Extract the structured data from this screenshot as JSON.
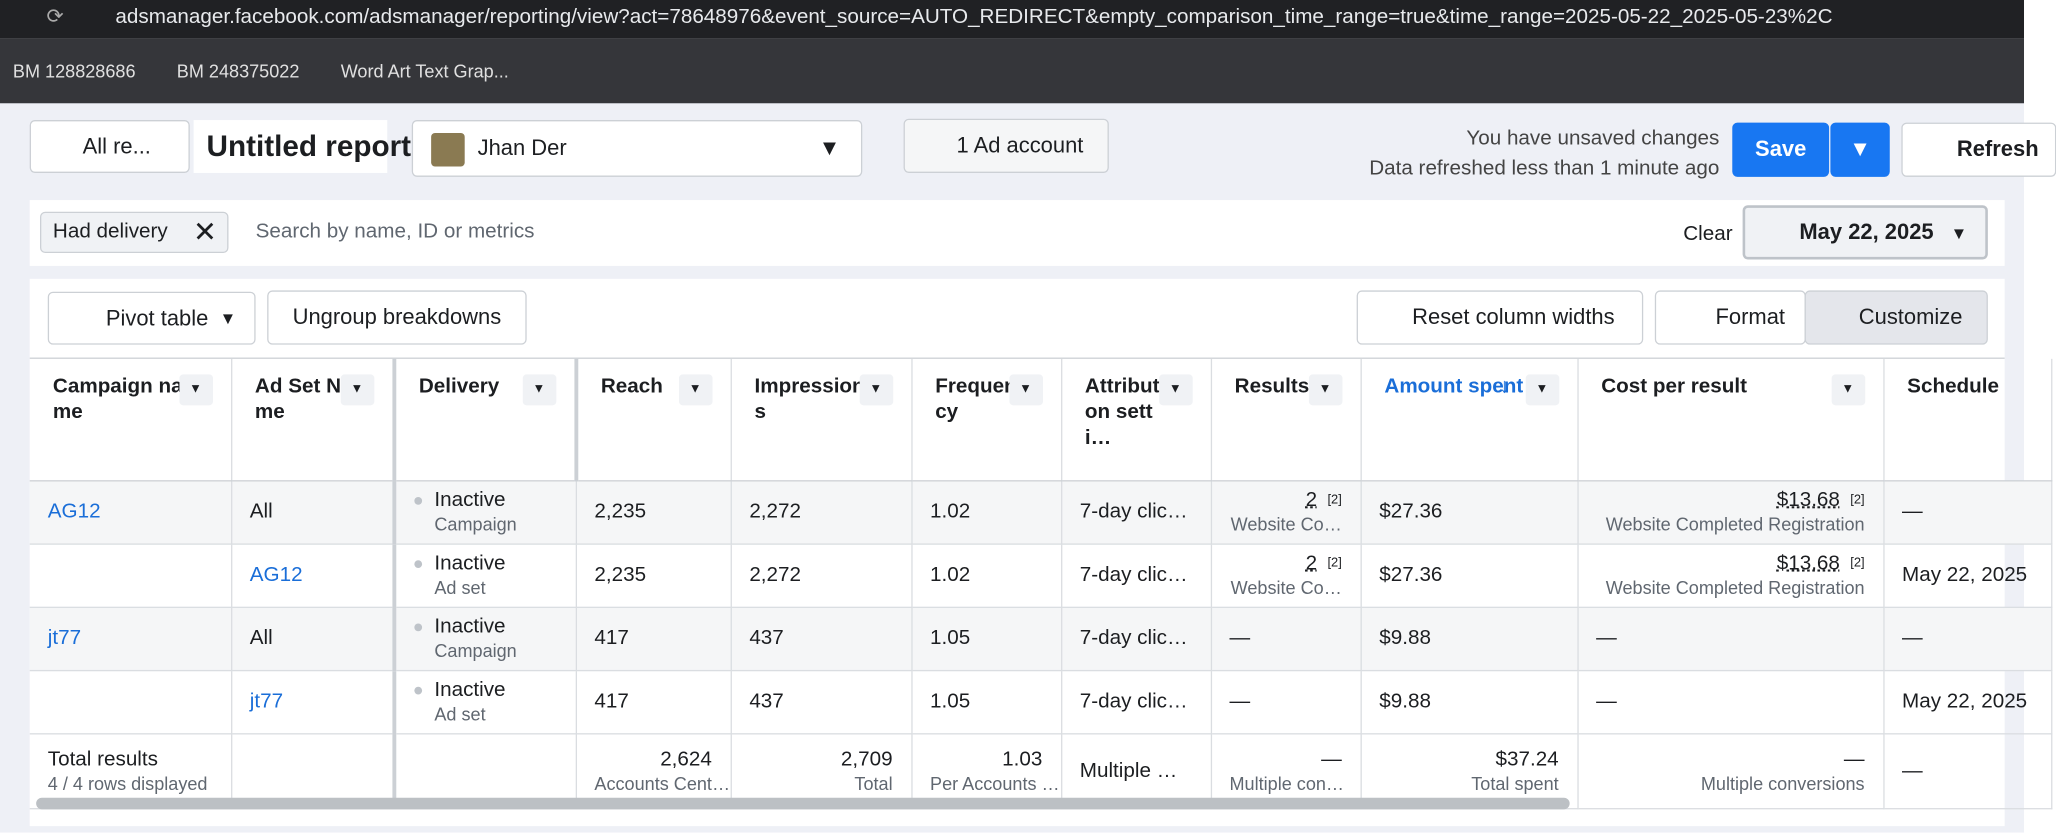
{
  "browser": {
    "url": "adsmanager.facebook.com/adsmanager/reporting/view?act=78648976&event_source=AUTO_REDIRECT&empty_comparison_time_range=true&time_range=2025-05-22_2025-05-23%2C",
    "bookmarks": [
      "BM 128828686",
      "BM 248375022",
      "Word Art Text Grap..."
    ]
  },
  "header": {
    "back": "All re...",
    "title": "Untitled report",
    "account": "Jhan Der",
    "ad_account": "1 Ad account",
    "unsaved": "You have unsaved changes",
    "refreshed": "Data refreshed less than 1 minute ago",
    "save": "Save",
    "refresh": "Refresh"
  },
  "filter": {
    "chip": "Had delivery",
    "search_placeholder": "Search by name, ID or metrics",
    "clear": "Clear",
    "date": "May 22, 2025"
  },
  "toolbar": {
    "pivot": "Pivot table",
    "ungroup": "Ungroup breakdowns",
    "reset": "Reset column widths",
    "format": "Format",
    "customize": "Customize"
  },
  "table": {
    "columns": [
      {
        "label": "Campaign name"
      },
      {
        "label": "Ad Set Name"
      },
      {
        "label": "Delivery"
      },
      {
        "label": "Reach"
      },
      {
        "label": "Impressions"
      },
      {
        "label": "Frequency"
      },
      {
        "label": "Attribution setti…"
      },
      {
        "label": "Results"
      },
      {
        "label": "Amount spent",
        "sorted": true
      },
      {
        "label": "Cost per result"
      },
      {
        "label": "Schedule"
      }
    ],
    "rows": [
      [
        {
          "text": "AG12",
          "link": true
        },
        {
          "text": "All"
        },
        {
          "text": "Inactive",
          "sub": "Campaign",
          "dot": true
        },
        {
          "text": "2,235"
        },
        {
          "text": "2,272"
        },
        {
          "text": "1.02"
        },
        {
          "text": "7-day clic…"
        },
        {
          "text": "2",
          "note": "[2]",
          "sub": "Website Co…"
        },
        {
          "text": "$27.36"
        },
        {
          "text": "$13.68",
          "note": "[2]",
          "sub": "Website Completed Registration"
        },
        {
          "text": "—"
        }
      ],
      [
        null,
        {
          "text": "AG12",
          "link": true
        },
        {
          "text": "Inactive",
          "sub": "Ad set",
          "dot": true
        },
        {
          "text": "2,235"
        },
        {
          "text": "2,272"
        },
        {
          "text": "1.02"
        },
        {
          "text": "7-day clic…"
        },
        {
          "text": "2",
          "note": "[2]",
          "sub": "Website Co…"
        },
        {
          "text": "$27.36"
        },
        {
          "text": "$13.68",
          "note": "[2]",
          "sub": "Website Completed Registration"
        },
        {
          "text": "May 22, 2025"
        }
      ],
      [
        {
          "text": "jt77",
          "link": true
        },
        {
          "text": "All"
        },
        {
          "text": "Inactive",
          "sub": "Campaign",
          "dot": true
        },
        {
          "text": "417"
        },
        {
          "text": "437"
        },
        {
          "text": "1.05"
        },
        {
          "text": "7-day clic…"
        },
        {
          "text": "—"
        },
        {
          "text": "$9.88"
        },
        {
          "text": "—"
        },
        {
          "text": "—"
        }
      ],
      [
        null,
        {
          "text": "jt77",
          "link": true
        },
        {
          "text": "Inactive",
          "sub": "Ad set",
          "dot": true
        },
        {
          "text": "417"
        },
        {
          "text": "437"
        },
        {
          "text": "1.05"
        },
        {
          "text": "7-day clic…"
        },
        {
          "text": "—"
        },
        {
          "text": "$9.88"
        },
        {
          "text": "—"
        },
        {
          "text": "May 22, 2025"
        }
      ]
    ],
    "totals": [
      {
        "text": "Total results",
        "sub": "4 / 4 rows displayed"
      },
      null,
      null,
      {
        "text": "2,624",
        "sub": "Accounts Cent…"
      },
      {
        "text": "2,709",
        "sub": "Total"
      },
      {
        "text": "1.03",
        "sub": "Per Accounts …"
      },
      {
        "text": "Multiple …"
      },
      {
        "text": "—",
        "sub": "Multiple con…"
      },
      {
        "text": "$37.24",
        "sub": "Total spent"
      },
      {
        "text": "—",
        "sub": "Multiple conversions"
      },
      {
        "text": "—"
      }
    ]
  }
}
